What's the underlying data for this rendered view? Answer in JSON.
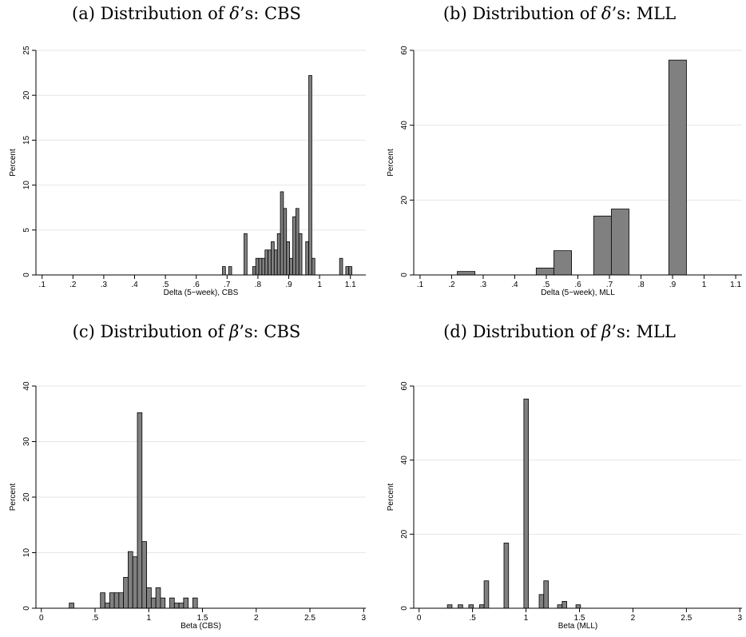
{
  "panels": [
    {
      "title_prefix": "(a) Distribution of ",
      "symbol": "δ",
      "title_suffix": "’s: CBS"
    },
    {
      "title_prefix": "(b) Distribution of ",
      "symbol": "δ",
      "title_suffix": "’s: MLL"
    },
    {
      "title_prefix": "(c) Distribution of ",
      "symbol": "β",
      "title_suffix": "’s: CBS"
    },
    {
      "title_prefix": "(d) Distribution of ",
      "symbol": "β",
      "title_suffix": "’s: MLL"
    }
  ],
  "chart_data": [
    {
      "type": "bar",
      "xlabel": "Delta (5−week), CBS",
      "ylabel": "Percent",
      "xlim": [
        0.08,
        1.15
      ],
      "ylim": [
        0,
        25
      ],
      "xticks": [
        0.1,
        0.2,
        0.3,
        0.4,
        0.5,
        0.6,
        0.7,
        0.8,
        0.9,
        1,
        1.1
      ],
      "xtick_labels": [
        ".1",
        ".2",
        ".3",
        ".4",
        ".5",
        ".6",
        ".7",
        ".8",
        ".9",
        "1",
        "1.1"
      ],
      "yticks": [
        0,
        5,
        10,
        15,
        20,
        25
      ],
      "bin_width": 0.0098,
      "bars": [
        {
          "x": 0.685,
          "y": 0.93
        },
        {
          "x": 0.705,
          "y": 0.93
        },
        {
          "x": 0.755,
          "y": 4.6
        },
        {
          "x": 0.783,
          "y": 0.93
        },
        {
          "x": 0.793,
          "y": 1.85
        },
        {
          "x": 0.803,
          "y": 1.85
        },
        {
          "x": 0.813,
          "y": 1.85
        },
        {
          "x": 0.823,
          "y": 2.78
        },
        {
          "x": 0.833,
          "y": 2.78
        },
        {
          "x": 0.843,
          "y": 3.7
        },
        {
          "x": 0.853,
          "y": 2.78
        },
        {
          "x": 0.863,
          "y": 4.6
        },
        {
          "x": 0.873,
          "y": 9.26
        },
        {
          "x": 0.883,
          "y": 7.4
        },
        {
          "x": 0.893,
          "y": 3.7
        },
        {
          "x": 0.903,
          "y": 1.85
        },
        {
          "x": 0.913,
          "y": 6.48
        },
        {
          "x": 0.923,
          "y": 7.4
        },
        {
          "x": 0.933,
          "y": 4.6
        },
        {
          "x": 0.955,
          "y": 3.7
        },
        {
          "x": 0.965,
          "y": 22.2
        },
        {
          "x": 0.975,
          "y": 1.85
        },
        {
          "x": 1.065,
          "y": 1.85
        },
        {
          "x": 1.085,
          "y": 0.93
        },
        {
          "x": 1.095,
          "y": 0.93
        }
      ],
      "grid": true,
      "bar_color": "#808080"
    },
    {
      "type": "bar",
      "xlabel": "Delta (5−week), MLL",
      "ylabel": "Percent",
      "xlim": [
        0.08,
        1.12
      ],
      "ylim": [
        0,
        60
      ],
      "xticks": [
        0.1,
        0.2,
        0.3,
        0.4,
        0.5,
        0.6,
        0.7,
        0.8,
        0.9,
        1,
        1.1
      ],
      "xtick_labels": [
        ".1",
        ".2",
        ".3",
        ".4",
        ".5",
        ".6",
        ".7",
        ".8",
        ".9",
        "1",
        "1.1"
      ],
      "yticks": [
        0,
        20,
        40,
        60
      ],
      "bin_width": 0.056,
      "bars": [
        {
          "x": 0.218,
          "y": 0.93
        },
        {
          "x": 0.468,
          "y": 1.85
        },
        {
          "x": 0.524,
          "y": 6.48
        },
        {
          "x": 0.65,
          "y": 15.74
        },
        {
          "x": 0.706,
          "y": 17.6
        },
        {
          "x": 0.888,
          "y": 57.4
        }
      ],
      "grid": true,
      "bar_color": "#808080"
    },
    {
      "type": "bar",
      "xlabel": "Beta (CBS)",
      "ylabel": "Percent",
      "xlim": [
        -0.05,
        3.02
      ],
      "ylim": [
        0,
        40
      ],
      "xticks": [
        0,
        0.5,
        1,
        1.5,
        2,
        2.5,
        3
      ],
      "xtick_labels": [
        "0",
        ".5",
        "1",
        "1.5",
        "2",
        "2.5",
        "3"
      ],
      "yticks": [
        0,
        10,
        20,
        30,
        40
      ],
      "bin_width": 0.043,
      "bars": [
        {
          "x": 0.26,
          "y": 0.93
        },
        {
          "x": 0.55,
          "y": 2.78
        },
        {
          "x": 0.593,
          "y": 0.93
        },
        {
          "x": 0.636,
          "y": 2.78
        },
        {
          "x": 0.679,
          "y": 2.78
        },
        {
          "x": 0.722,
          "y": 2.78
        },
        {
          "x": 0.765,
          "y": 5.56
        },
        {
          "x": 0.808,
          "y": 10.2
        },
        {
          "x": 0.851,
          "y": 9.26
        },
        {
          "x": 0.894,
          "y": 35.2
        },
        {
          "x": 0.937,
          "y": 12.0
        },
        {
          "x": 0.98,
          "y": 3.7
        },
        {
          "x": 1.023,
          "y": 1.85
        },
        {
          "x": 1.066,
          "y": 3.7
        },
        {
          "x": 1.109,
          "y": 1.85
        },
        {
          "x": 1.195,
          "y": 1.85
        },
        {
          "x": 1.238,
          "y": 0.93
        },
        {
          "x": 1.281,
          "y": 0.93
        },
        {
          "x": 1.324,
          "y": 1.85
        },
        {
          "x": 1.41,
          "y": 1.85
        }
      ],
      "grid": true,
      "bar_color": "#808080"
    },
    {
      "type": "bar",
      "xlabel": "Beta (MLL)",
      "ylabel": "Percent",
      "xlim": [
        -0.05,
        3.02
      ],
      "ylim": [
        0,
        60
      ],
      "xticks": [
        0,
        0.5,
        1,
        1.5,
        2,
        2.5,
        3
      ],
      "xtick_labels": [
        "0",
        ".5",
        "1",
        "1.5",
        "2",
        "2.5",
        "3"
      ],
      "yticks": [
        0,
        20,
        40,
        60
      ],
      "bin_width": 0.043,
      "bars": [
        {
          "x": 0.265,
          "y": 0.93
        },
        {
          "x": 0.365,
          "y": 0.93
        },
        {
          "x": 0.465,
          "y": 0.93
        },
        {
          "x": 0.565,
          "y": 0.93
        },
        {
          "x": 0.608,
          "y": 7.4
        },
        {
          "x": 0.794,
          "y": 17.6
        },
        {
          "x": 0.98,
          "y": 56.5
        },
        {
          "x": 1.123,
          "y": 3.7
        },
        {
          "x": 1.166,
          "y": 7.4
        },
        {
          "x": 1.295,
          "y": 0.93
        },
        {
          "x": 1.338,
          "y": 1.85
        },
        {
          "x": 1.467,
          "y": 0.93
        }
      ],
      "grid": true,
      "bar_color": "#808080"
    }
  ]
}
